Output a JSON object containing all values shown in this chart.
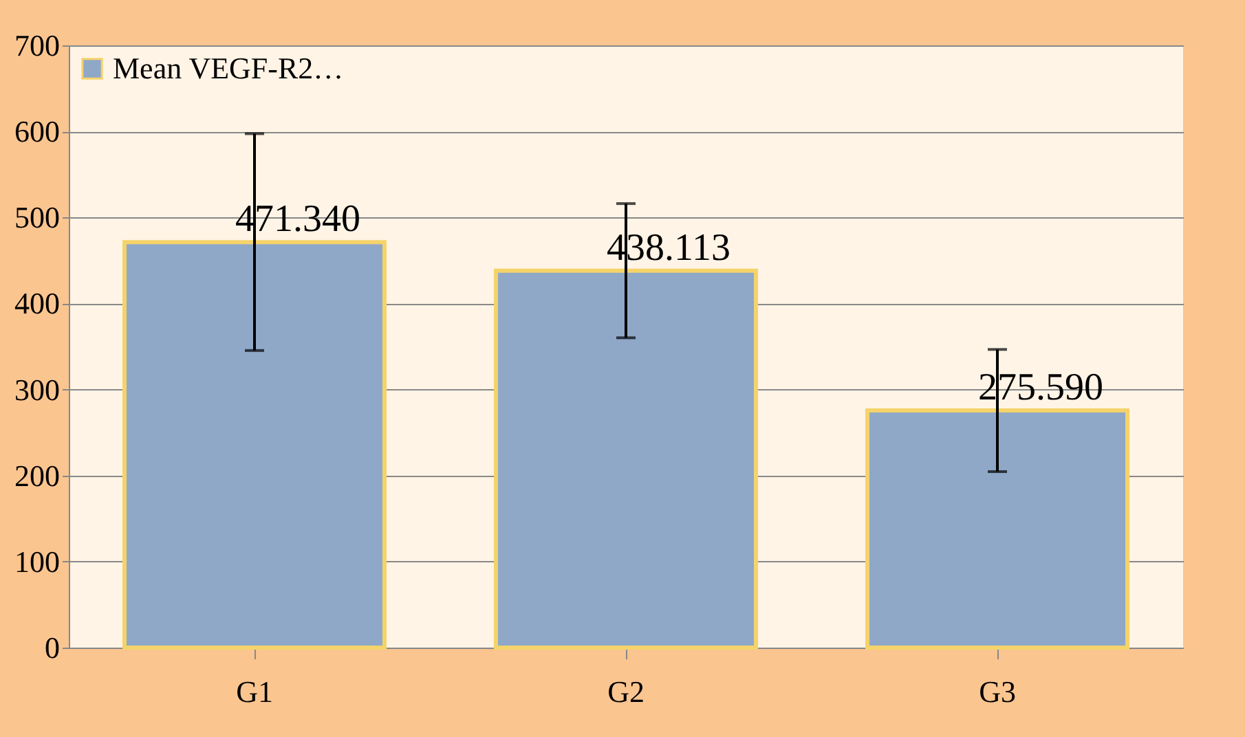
{
  "chart_data": {
    "type": "bar",
    "categories": [
      "G1",
      "G2",
      "G3"
    ],
    "series": [
      {
        "name": "Mean VEGF-R2…",
        "color": "#8fa8c8",
        "values": [
          471.34,
          438.113,
          275.59
        ],
        "errors": [
          126,
          78,
          71
        ],
        "value_labels": [
          "471.340",
          "438.113",
          "275.590"
        ]
      }
    ],
    "ylim": [
      0,
      700
    ],
    "yticks": [
      0,
      100,
      200,
      300,
      400,
      500,
      600,
      700
    ],
    "grid": "y",
    "legend": "top left"
  }
}
